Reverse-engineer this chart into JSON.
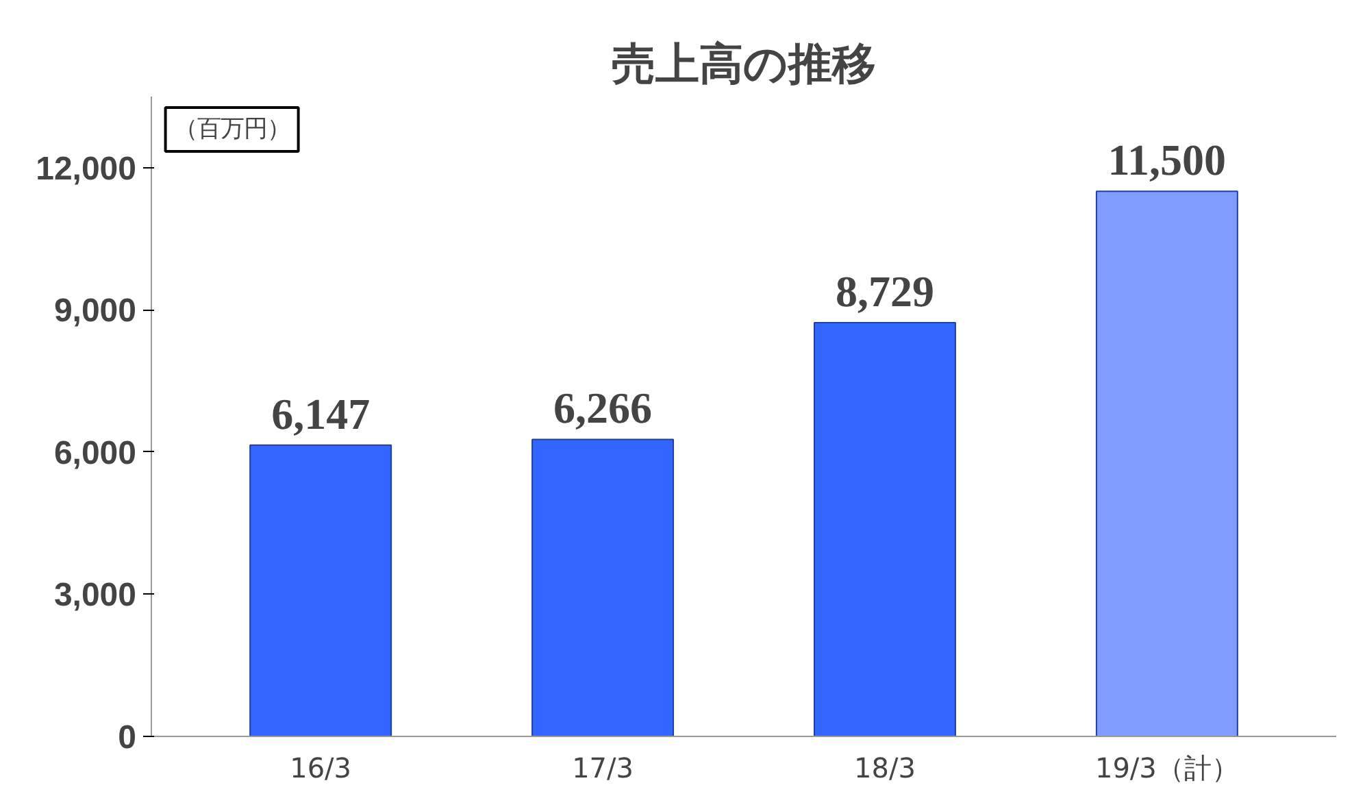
{
  "chart_data": {
    "type": "bar",
    "title": "売上高の推移",
    "ylabel": "（百万円）",
    "categories": [
      "16/3",
      "17/3",
      "18/3",
      "19/3（計）"
    ],
    "values": [
      6147,
      6266,
      8729,
      11500
    ],
    "colors": [
      "#3366ff",
      "#3366ff",
      "#3366ff",
      "#7f9cff"
    ],
    "value_labels": [
      "6,147",
      "6,266",
      "8,729",
      "11,500"
    ],
    "ylim": [
      0,
      13500
    ],
    "yticks": [
      {
        "value": 0,
        "label": "0"
      },
      {
        "value": 3000,
        "label": "3,000"
      },
      {
        "value": 6000,
        "label": "6,000"
      },
      {
        "value": 9000,
        "label": "9,000"
      },
      {
        "value": 12000,
        "label": "12,000"
      }
    ],
    "grid": false
  }
}
